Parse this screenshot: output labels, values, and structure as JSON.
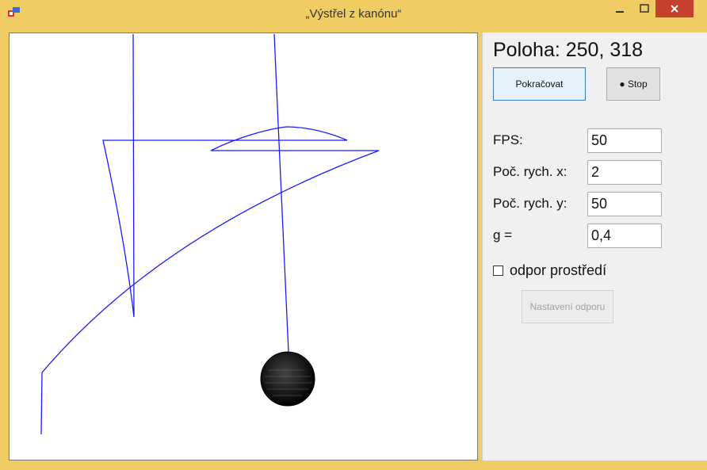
{
  "window": {
    "title": "„Výstřel z kanónu“",
    "controls": [
      "minimize-icon",
      "maximize-icon",
      "close-icon"
    ],
    "accent_color": "#f0cd63",
    "close_color": "#c7402e"
  },
  "panel": {
    "position_label": "Poloha: 250, 318",
    "continue_button": "Pokračovat",
    "stop_button": "● Stop",
    "fields": [
      {
        "label": "FPS:",
        "value": "50"
      },
      {
        "label": "Poč. rych. x:",
        "value": "2"
      },
      {
        "label": "Poč. rych. y:",
        "value": "50"
      },
      {
        "label": "g =",
        "value": "0,4"
      }
    ],
    "drag_checkbox_label": "odpor prostředí",
    "drag_settings_button": "Nastavení odporu"
  },
  "canvas": {
    "trajectory_color": "#1a1aff",
    "ball_color": "#111111"
  }
}
